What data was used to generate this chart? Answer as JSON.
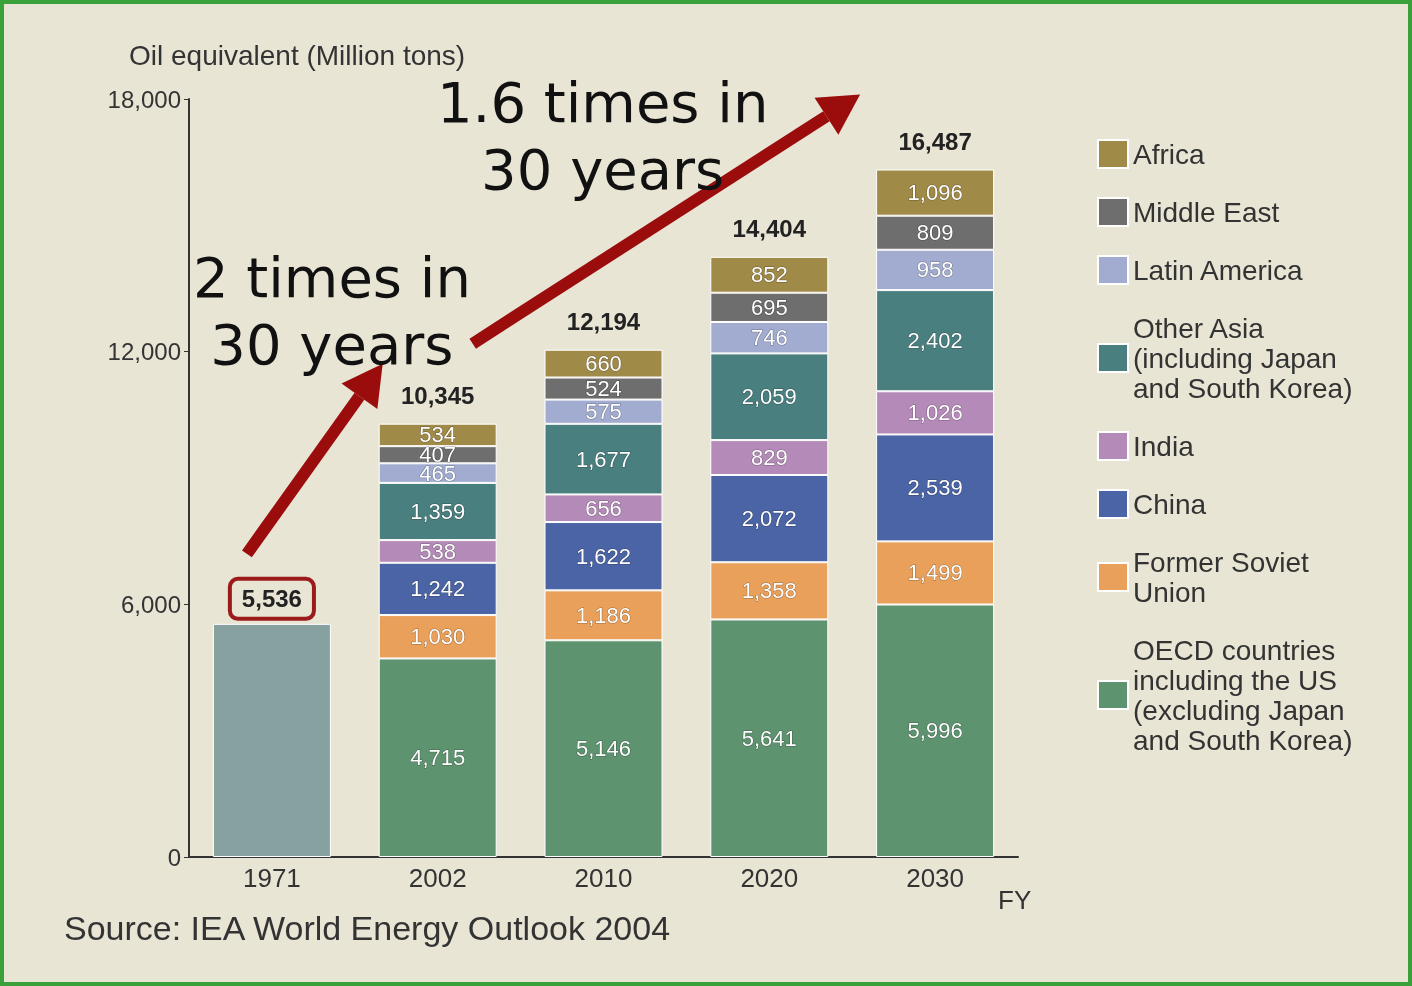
{
  "chart_data": {
    "type": "bar",
    "stacked": true,
    "ylabel": "Oil equivalent (Million tons)",
    "xlabel": "FY",
    "categories": [
      "1971",
      "2002",
      "2010",
      "2020",
      "2030"
    ],
    "ylim": [
      0,
      18000
    ],
    "yticks": [
      0,
      {
        "value": 6000,
        "label": "6,000"
      },
      {
        "value": 12000,
        "label": "12,000"
      },
      {
        "value": 18000,
        "label": "18,000"
      }
    ],
    "series": [
      {
        "color": "#87a0a0",
        "values": [
          5536,
          null,
          null,
          null,
          null
        ],
        "value_labels": [
          "5,536",
          null,
          null,
          null,
          null
        ]
      },
      {
        "name": "OECD countries including the US (excluding Japan and South Korea)",
        "color": "#5e9370",
        "values": [
          null,
          4715,
          5146,
          5641,
          5996
        ],
        "value_labels": [
          null,
          "4,715",
          "5,146",
          "5,641",
          "5,996"
        ]
      },
      {
        "name": "Former Soviet Union",
        "color": "#e8a05a",
        "values": [
          null,
          1030,
          1186,
          1358,
          1499
        ],
        "value_labels": [
          null,
          "1,030",
          "1,186",
          "1,358",
          "1,499"
        ]
      },
      {
        "name": "China",
        "color": "#4a64a5",
        "values": [
          null,
          1242,
          1622,
          2072,
          2539
        ],
        "value_labels": [
          null,
          "1,242",
          "1,622",
          "2,072",
          "2,539"
        ]
      },
      {
        "name": "India",
        "color": "#b48ab8",
        "values": [
          null,
          538,
          656,
          829,
          1026
        ],
        "value_labels": [
          null,
          "538",
          "656",
          "829",
          "1,026"
        ]
      },
      {
        "name": "Other Asia (including Japan and South Korea)",
        "color": "#4a7f7f",
        "values": [
          null,
          1359,
          1677,
          2059,
          2402
        ],
        "value_labels": [
          null,
          "1,359",
          "1,677",
          "2,059",
          "2,402"
        ]
      },
      {
        "name": "Latin America",
        "color": "#a2acd0",
        "values": [
          null,
          465,
          575,
          746,
          958
        ],
        "value_labels": [
          null,
          "465",
          "575",
          "746",
          "958"
        ]
      },
      {
        "name": "Middle East",
        "color": "#6e6e6e",
        "values": [
          null,
          407,
          524,
          695,
          809
        ],
        "value_labels": [
          null,
          "407",
          "524",
          "695",
          "809"
        ]
      },
      {
        "name": "Africa",
        "color": "#a08a48",
        "values": [
          null,
          534,
          660,
          852,
          1096
        ],
        "value_labels": [
          null,
          "534",
          "660",
          "852",
          "1,096"
        ]
      }
    ],
    "grid": false,
    "legend": "right",
    "annotations": [
      "2 times in 30 years",
      "1.6 times in 30 years",
      "Source: IEA World Energy Outlook 2004",
      "10,345",
      "12,194",
      "14,404",
      "16,487"
    ]
  }
}
